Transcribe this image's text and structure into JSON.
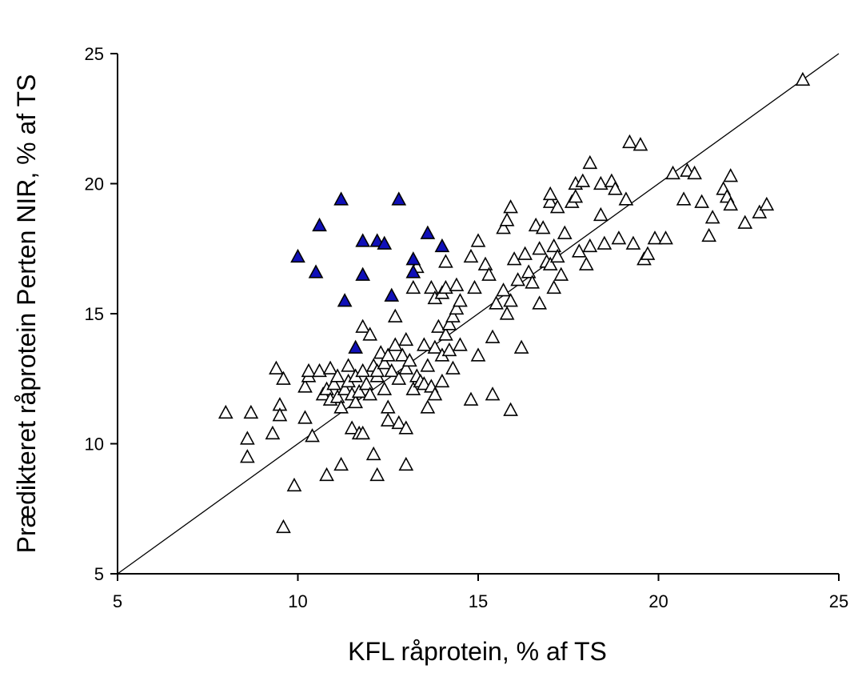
{
  "chart_data": {
    "type": "scatter",
    "title": "",
    "xlabel": "KFL råprotein, % af TS",
    "ylabel": "Prædikteret råprotein Perten NIR, % af TS",
    "xlim": [
      5,
      25
    ],
    "ylim": [
      5,
      25
    ],
    "xticks": [
      5,
      10,
      15,
      20,
      25
    ],
    "yticks": [
      5,
      10,
      15,
      20,
      25
    ],
    "grid": false,
    "legend": "none",
    "reference_line": {
      "type": "1:1",
      "from": [
        5,
        5
      ],
      "to": [
        25,
        25
      ]
    },
    "series": [
      {
        "marker": "open-triangle",
        "color": "#000000",
        "fill": "#ffffff",
        "points": [
          [
            8.0,
            11.2
          ],
          [
            8.7,
            11.2
          ],
          [
            8.6,
            10.2
          ],
          [
            8.6,
            9.5
          ],
          [
            9.3,
            10.4
          ],
          [
            9.4,
            12.9
          ],
          [
            9.5,
            11.5
          ],
          [
            9.5,
            11.1
          ],
          [
            9.6,
            12.5
          ],
          [
            9.6,
            6.8
          ],
          [
            9.9,
            8.4
          ],
          [
            10.2,
            11.0
          ],
          [
            10.2,
            12.2
          ],
          [
            10.3,
            12.6
          ],
          [
            10.3,
            12.8
          ],
          [
            10.4,
            10.3
          ],
          [
            10.6,
            12.8
          ],
          [
            10.7,
            11.9
          ],
          [
            10.8,
            8.8
          ],
          [
            10.8,
            12.1
          ],
          [
            10.9,
            11.7
          ],
          [
            10.9,
            12.9
          ],
          [
            11.0,
            12.3
          ],
          [
            11.1,
            12.6
          ],
          [
            11.1,
            11.8
          ],
          [
            11.2,
            11.4
          ],
          [
            11.2,
            9.2
          ],
          [
            11.3,
            12.1
          ],
          [
            11.4,
            13.0
          ],
          [
            11.4,
            12.4
          ],
          [
            11.5,
            11.9
          ],
          [
            11.5,
            10.6
          ],
          [
            11.6,
            11.6
          ],
          [
            11.6,
            12.6
          ],
          [
            11.7,
            10.4
          ],
          [
            11.7,
            12.0
          ],
          [
            11.8,
            10.4
          ],
          [
            11.8,
            12.8
          ],
          [
            11.8,
            14.5
          ],
          [
            11.9,
            12.3
          ],
          [
            12.0,
            11.9
          ],
          [
            12.0,
            14.2
          ],
          [
            12.1,
            9.6
          ],
          [
            12.1,
            13.0
          ],
          [
            12.2,
            12.6
          ],
          [
            12.2,
            8.8
          ],
          [
            12.2,
            12.8
          ],
          [
            12.3,
            13.5
          ],
          [
            12.4,
            12.1
          ],
          [
            12.4,
            13.1
          ],
          [
            12.5,
            11.4
          ],
          [
            12.5,
            13.4
          ],
          [
            12.5,
            10.9
          ],
          [
            12.6,
            12.8
          ],
          [
            12.7,
            13.8
          ],
          [
            12.7,
            14.9
          ],
          [
            12.8,
            10.8
          ],
          [
            12.8,
            12.5
          ],
          [
            12.9,
            13.4
          ],
          [
            13.0,
            14.0
          ],
          [
            13.0,
            12.9
          ],
          [
            13.0,
            9.2
          ],
          [
            13.0,
            10.6
          ],
          [
            13.1,
            13.2
          ],
          [
            13.2,
            12.1
          ],
          [
            13.2,
            16.0
          ],
          [
            13.3,
            12.6
          ],
          [
            13.3,
            16.8
          ],
          [
            13.4,
            12.4
          ],
          [
            13.5,
            13.8
          ],
          [
            13.5,
            12.3
          ],
          [
            13.6,
            11.4
          ],
          [
            13.6,
            13.0
          ],
          [
            13.7,
            12.2
          ],
          [
            13.7,
            16.0
          ],
          [
            13.8,
            13.7
          ],
          [
            13.8,
            11.9
          ],
          [
            13.8,
            15.6
          ],
          [
            13.9,
            14.5
          ],
          [
            14.0,
            12.4
          ],
          [
            14.0,
            13.4
          ],
          [
            14.0,
            15.8
          ],
          [
            14.1,
            14.2
          ],
          [
            14.1,
            16.0
          ],
          [
            14.1,
            17.0
          ],
          [
            14.2,
            13.6
          ],
          [
            14.2,
            14.6
          ],
          [
            14.3,
            12.9
          ],
          [
            14.3,
            14.9
          ],
          [
            14.4,
            15.2
          ],
          [
            14.4,
            16.1
          ],
          [
            14.5,
            13.8
          ],
          [
            14.5,
            15.5
          ],
          [
            14.8,
            11.7
          ],
          [
            14.8,
            17.2
          ],
          [
            14.9,
            16.0
          ],
          [
            15.0,
            13.4
          ],
          [
            15.0,
            17.8
          ],
          [
            15.2,
            16.9
          ],
          [
            15.3,
            16.5
          ],
          [
            15.4,
            14.1
          ],
          [
            15.4,
            11.9
          ],
          [
            15.5,
            15.4
          ],
          [
            15.7,
            15.9
          ],
          [
            15.7,
            18.3
          ],
          [
            15.8,
            18.6
          ],
          [
            15.8,
            15.0
          ],
          [
            15.9,
            11.3
          ],
          [
            15.9,
            19.1
          ],
          [
            15.9,
            15.5
          ],
          [
            16.0,
            17.1
          ],
          [
            16.1,
            16.3
          ],
          [
            16.2,
            13.7
          ],
          [
            16.3,
            17.3
          ],
          [
            16.4,
            16.6
          ],
          [
            16.5,
            16.2
          ],
          [
            16.6,
            18.4
          ],
          [
            16.7,
            15.4
          ],
          [
            16.7,
            17.5
          ],
          [
            16.8,
            18.3
          ],
          [
            16.9,
            17.0
          ],
          [
            17.0,
            19.3
          ],
          [
            17.0,
            16.9
          ],
          [
            17.0,
            19.6
          ],
          [
            17.1,
            17.6
          ],
          [
            17.1,
            16.0
          ],
          [
            17.2,
            19.1
          ],
          [
            17.2,
            17.2
          ],
          [
            17.3,
            16.5
          ],
          [
            17.4,
            18.1
          ],
          [
            17.6,
            19.3
          ],
          [
            17.7,
            20.0
          ],
          [
            17.7,
            19.5
          ],
          [
            17.8,
            17.4
          ],
          [
            17.9,
            20.1
          ],
          [
            18.0,
            16.9
          ],
          [
            18.1,
            20.8
          ],
          [
            18.1,
            17.6
          ],
          [
            18.4,
            20.0
          ],
          [
            18.4,
            18.8
          ],
          [
            18.5,
            17.7
          ],
          [
            18.7,
            20.1
          ],
          [
            18.8,
            19.8
          ],
          [
            18.9,
            17.9
          ],
          [
            19.1,
            19.4
          ],
          [
            19.2,
            21.6
          ],
          [
            19.3,
            17.7
          ],
          [
            19.5,
            21.5
          ],
          [
            19.6,
            17.1
          ],
          [
            19.7,
            17.3
          ],
          [
            19.9,
            17.9
          ],
          [
            20.2,
            17.9
          ],
          [
            20.4,
            20.4
          ],
          [
            20.7,
            19.4
          ],
          [
            20.8,
            20.5
          ],
          [
            21.0,
            20.4
          ],
          [
            21.2,
            19.3
          ],
          [
            21.4,
            18.0
          ],
          [
            21.5,
            18.7
          ],
          [
            21.8,
            19.8
          ],
          [
            21.9,
            19.5
          ],
          [
            22.0,
            20.3
          ],
          [
            22.0,
            19.2
          ],
          [
            22.4,
            18.5
          ],
          [
            22.8,
            18.9
          ],
          [
            23.0,
            19.2
          ],
          [
            24.0,
            24.0
          ]
        ]
      },
      {
        "marker": "filled-triangle",
        "color": "#000000",
        "fill": "#1010b8",
        "points": [
          [
            10.0,
            17.2
          ],
          [
            10.5,
            16.6
          ],
          [
            10.6,
            18.4
          ],
          [
            11.2,
            19.4
          ],
          [
            11.3,
            15.5
          ],
          [
            11.6,
            13.7
          ],
          [
            11.8,
            16.5
          ],
          [
            11.8,
            17.8
          ],
          [
            12.2,
            17.8
          ],
          [
            12.4,
            17.7
          ],
          [
            12.6,
            15.7
          ],
          [
            12.8,
            19.4
          ],
          [
            13.2,
            17.1
          ],
          [
            13.2,
            16.6
          ],
          [
            13.6,
            18.1
          ],
          [
            14.0,
            17.6
          ]
        ]
      }
    ]
  }
}
